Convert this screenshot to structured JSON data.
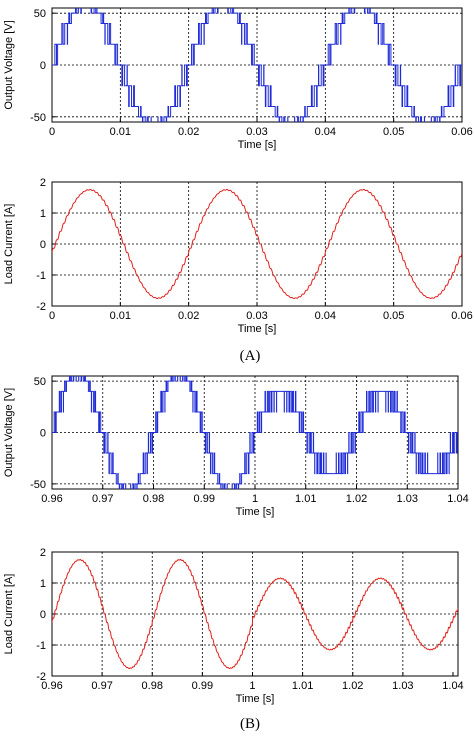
{
  "panel_labels": [
    "(A)",
    "(B)"
  ],
  "colors": {
    "voltage": "#1f2bd6",
    "current": "#e0201b",
    "grid": "#000000"
  },
  "chart_data": [
    {
      "type": "line",
      "panel": "A",
      "signal": "voltage",
      "xlabel": "Time [s]",
      "ylabel": "Output Voltage [V]",
      "xlim": [
        0,
        0.06
      ],
      "ylim": [
        -55,
        55
      ],
      "xticks": [
        0,
        0.01,
        0.02,
        0.03,
        0.04,
        0.05,
        0.06
      ],
      "xtick_labels": [
        "0",
        "0.01",
        "0.02",
        "0.03",
        "0.04",
        "0.05",
        "0.06"
      ],
      "yticks": [
        -50,
        0,
        50
      ],
      "ytick_labels": [
        "-50",
        "0",
        "50"
      ],
      "grid": true,
      "waveform": {
        "kind": "multilevel-stepped-pwm",
        "fundamental_hz": 50,
        "levels": [
          -60,
          -50,
          -40,
          -20,
          0,
          20,
          40,
          50,
          60
        ],
        "phase": 0,
        "carrier_cycles_per_period": 40
      }
    },
    {
      "type": "line",
      "panel": "A",
      "signal": "current",
      "xlabel": "Time [s]",
      "ylabel": "Load Current [A]",
      "xlim": [
        0,
        0.06
      ],
      "ylim": [
        -2,
        2
      ],
      "xticks": [
        0,
        0.01,
        0.02,
        0.03,
        0.04,
        0.05,
        0.06
      ],
      "xtick_labels": [
        "0",
        "0.01",
        "0.02",
        "0.03",
        "0.04",
        "0.05",
        "0.06"
      ],
      "yticks": [
        -2,
        -1,
        0,
        1,
        2
      ],
      "ytick_labels": [
        "-2",
        "-1",
        "0",
        "1",
        "2"
      ],
      "grid": true,
      "waveform": {
        "kind": "sine-with-ripple",
        "fundamental_hz": 50,
        "amplitude": 1.75,
        "phase_shift_s": 0.0005,
        "ripple_amplitude": 0.05
      }
    },
    {
      "type": "line",
      "panel": "B",
      "signal": "voltage",
      "xlabel": "Time [s]",
      "ylabel": "Output Voltage [V]",
      "xlim": [
        0.96,
        1.04
      ],
      "ylim": [
        -55,
        55
      ],
      "xticks": [
        0.96,
        0.97,
        0.98,
        0.99,
        1.0,
        1.01,
        1.02,
        1.03,
        1.04
      ],
      "xtick_labels": [
        "0.96",
        "0.97",
        "0.98",
        "0.99",
        "1",
        "1.01",
        "1.02",
        "1.03",
        "1.04"
      ],
      "yticks": [
        -50,
        0,
        50
      ],
      "ytick_labels": [
        "-50",
        "0",
        "50"
      ],
      "grid": true,
      "waveform": {
        "kind": "multilevel-stepped-pwm",
        "fundamental_hz": 50,
        "levels_before_1s": [
          -60,
          -50,
          -40,
          -20,
          0,
          20,
          40,
          50,
          60
        ],
        "levels_after_1s": [
          -40,
          -20,
          0,
          20,
          40
        ],
        "change_time_s": 1.0
      }
    },
    {
      "type": "line",
      "panel": "B",
      "signal": "current",
      "xlabel": "Time [s]",
      "ylabel": "Load Current [A]",
      "xlim": [
        0.96,
        1.041
      ],
      "ylim": [
        -2,
        2
      ],
      "xticks": [
        0.96,
        0.97,
        0.98,
        0.99,
        1.0,
        1.01,
        1.02,
        1.03,
        1.04
      ],
      "xtick_labels": [
        "0.96",
        "0.97",
        "0.98",
        "0.99",
        "1",
        "1.01",
        "1.02",
        "1.03",
        "1.04"
      ],
      "yticks": [
        -2,
        -1,
        0,
        1,
        2
      ],
      "ytick_labels": [
        "-2",
        "-1",
        "0",
        "1",
        "2"
      ],
      "grid": true,
      "waveform": {
        "kind": "sine-with-ripple",
        "fundamental_hz": 50,
        "amplitude_before_1s": 1.75,
        "amplitude_after_1s": 1.15,
        "change_time_s": 1.0,
        "ripple_amplitude": 0.05
      }
    }
  ]
}
